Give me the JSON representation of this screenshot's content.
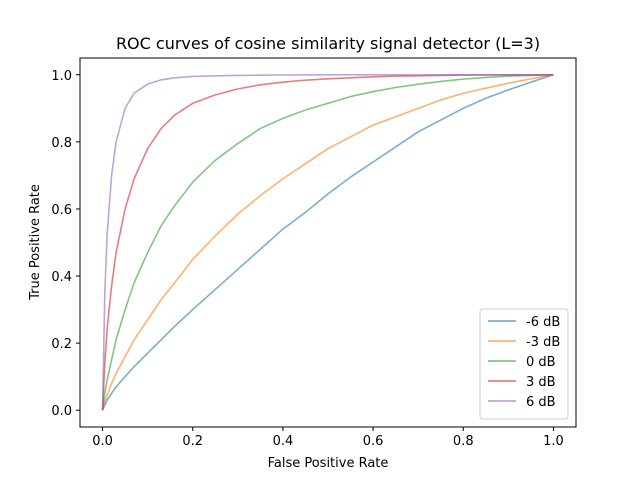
{
  "chart_data": {
    "type": "line",
    "title": "ROC curves of cosine similarity signal detector (L=3)",
    "xlabel": "False Positive Rate",
    "ylabel": "True Positive Rate",
    "xlim": [
      -0.05,
      1.05
    ],
    "ylim": [
      -0.05,
      1.05
    ],
    "xticks": [
      0.0,
      0.2,
      0.4,
      0.6,
      0.8,
      1.0
    ],
    "yticks": [
      0.0,
      0.2,
      0.4,
      0.6,
      0.8,
      1.0
    ],
    "xtick_labels": [
      "0.0",
      "0.2",
      "0.4",
      "0.6",
      "0.8",
      "1.0"
    ],
    "ytick_labels": [
      "0.0",
      "0.2",
      "0.4",
      "0.6",
      "0.8",
      "1.0"
    ],
    "grid": false,
    "legend_position": "lower-right",
    "x": [
      0.0,
      0.005,
      0.01,
      0.02,
      0.03,
      0.05,
      0.07,
      0.1,
      0.13,
      0.16,
      0.2,
      0.25,
      0.3,
      0.35,
      0.4,
      0.45,
      0.5,
      0.55,
      0.6,
      0.65,
      0.7,
      0.75,
      0.8,
      0.85,
      0.9,
      0.95,
      1.0
    ],
    "series": [
      {
        "name": "-6 dB",
        "color": "#1f77b4",
        "values": [
          0.0,
          0.015,
          0.03,
          0.05,
          0.07,
          0.1,
          0.13,
          0.17,
          0.21,
          0.25,
          0.3,
          0.36,
          0.42,
          0.48,
          0.54,
          0.59,
          0.645,
          0.695,
          0.74,
          0.785,
          0.83,
          0.865,
          0.9,
          0.93,
          0.955,
          0.978,
          1.0
        ]
      },
      {
        "name": "-3 dB",
        "color": "#ff7f0e",
        "values": [
          0.0,
          0.025,
          0.045,
          0.08,
          0.11,
          0.16,
          0.21,
          0.27,
          0.33,
          0.38,
          0.45,
          0.52,
          0.585,
          0.64,
          0.69,
          0.735,
          0.78,
          0.815,
          0.85,
          0.875,
          0.9,
          0.925,
          0.945,
          0.96,
          0.975,
          0.988,
          1.0
        ]
      },
      {
        "name": "0 dB",
        "color": "#2ca02c",
        "values": [
          0.0,
          0.05,
          0.09,
          0.15,
          0.21,
          0.3,
          0.38,
          0.47,
          0.55,
          0.61,
          0.68,
          0.745,
          0.795,
          0.84,
          0.87,
          0.895,
          0.915,
          0.935,
          0.95,
          0.962,
          0.972,
          0.98,
          0.987,
          0.992,
          0.996,
          0.998,
          1.0
        ]
      },
      {
        "name": "3 dB",
        "color": "#d62728",
        "values": [
          0.0,
          0.14,
          0.24,
          0.37,
          0.47,
          0.6,
          0.69,
          0.78,
          0.84,
          0.88,
          0.915,
          0.94,
          0.958,
          0.97,
          0.978,
          0.984,
          0.988,
          0.991,
          0.994,
          0.996,
          0.997,
          0.998,
          0.999,
          0.9995,
          0.9998,
          1.0,
          1.0
        ]
      },
      {
        "name": "6 dB",
        "color": "#9467bd",
        "values": [
          0.0,
          0.35,
          0.52,
          0.7,
          0.8,
          0.9,
          0.945,
          0.972,
          0.985,
          0.991,
          0.995,
          0.997,
          0.998,
          0.9988,
          0.9993,
          0.9996,
          0.9998,
          0.9999,
          1.0,
          1.0,
          1.0,
          1.0,
          1.0,
          1.0,
          1.0,
          1.0,
          1.0
        ]
      }
    ]
  }
}
